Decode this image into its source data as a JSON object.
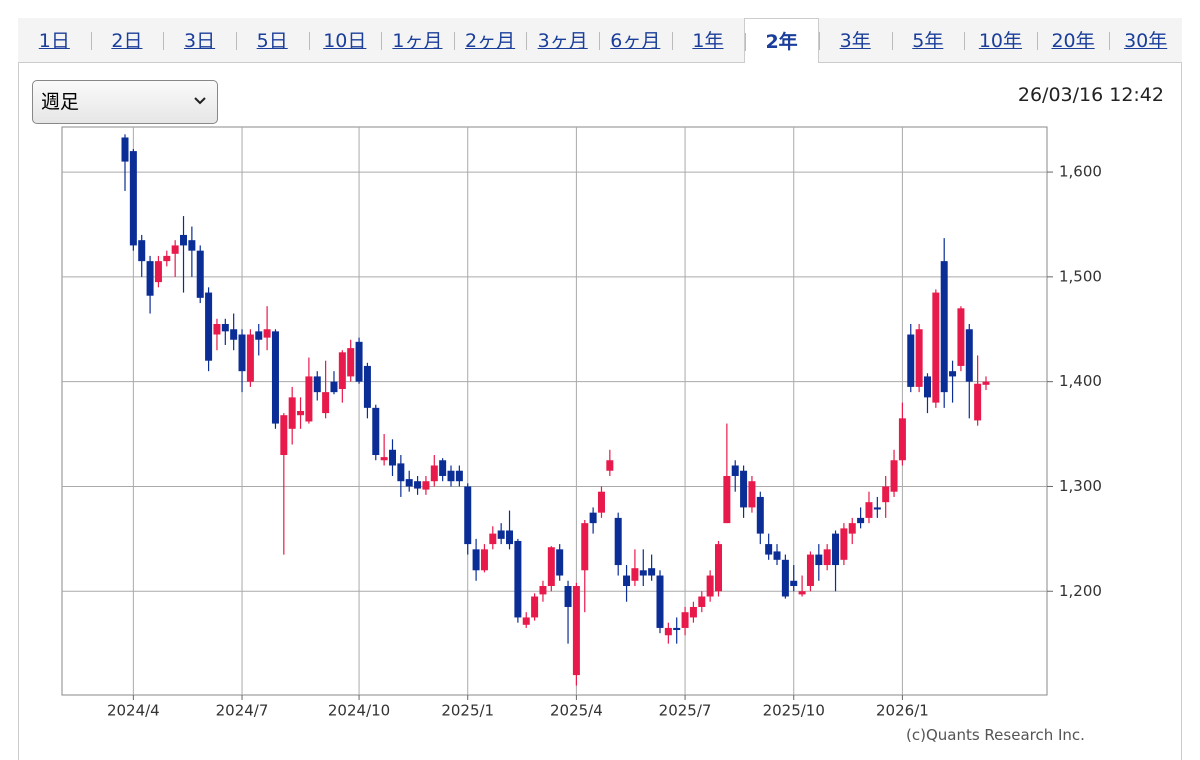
{
  "ui": {
    "tabs": [
      "1日",
      "2日",
      "3日",
      "5日",
      "10日",
      "1ヶ月",
      "2ヶ月",
      "3ヶ月",
      "6ヶ月",
      "1年",
      "2年",
      "3年",
      "5年",
      "10年",
      "20年",
      "30年"
    ],
    "active_tab": 10,
    "period_select": "週足",
    "timestamp": "26/03/16 12:42",
    "copyright": "(c)Quants Research Inc."
  },
  "chart_data": {
    "type": "candlestick",
    "up_color": "#e8194b",
    "down_color": "#0a2d96",
    "grid": true,
    "ylim": [
      1101,
      1643
    ],
    "yticks": [
      {
        "value": 1200,
        "label": "1,200"
      },
      {
        "value": 1300,
        "label": "1,300"
      },
      {
        "value": 1400,
        "label": "1,400"
      },
      {
        "value": 1500,
        "label": "1,500"
      },
      {
        "value": 1600,
        "label": "1,600"
      }
    ],
    "categories": [
      null,
      "2024/4",
      null,
      null,
      null,
      null,
      null,
      null,
      null,
      null,
      null,
      null,
      null,
      null,
      "2024/7",
      null,
      null,
      null,
      null,
      null,
      null,
      null,
      null,
      null,
      null,
      null,
      null,
      null,
      "2024/10",
      null,
      null,
      null,
      null,
      null,
      null,
      null,
      null,
      null,
      null,
      null,
      null,
      "2025/1",
      null,
      null,
      null,
      null,
      null,
      null,
      null,
      null,
      null,
      null,
      null,
      null,
      "2025/4",
      null,
      null,
      null,
      null,
      null,
      null,
      null,
      null,
      null,
      null,
      null,
      null,
      "2025/7",
      null,
      null,
      null,
      null,
      null,
      null,
      null,
      null,
      null,
      null,
      null,
      null,
      "2025/10",
      null,
      null,
      null,
      null,
      null,
      null,
      null,
      null,
      null,
      null,
      null,
      null,
      "2026/1",
      null,
      null,
      null,
      null,
      null,
      null,
      null,
      null,
      null,
      null
    ],
    "open": [
      1633,
      1620,
      1535,
      1515,
      1495,
      1515,
      1522,
      1540,
      1535,
      1525,
      1485,
      1445,
      1455,
      1450,
      1445,
      1400,
      1448,
      1442,
      1448,
      1330,
      1355,
      1368,
      1362,
      1405,
      1370,
      1400,
      1393,
      1405,
      1438,
      1415,
      1375,
      1325,
      1335,
      1322,
      1307,
      1305,
      1297,
      1305,
      1325,
      1315,
      1315,
      1300,
      1240,
      1220,
      1245,
      1258,
      1258,
      1248,
      1168,
      1175,
      1197,
      1205,
      1240,
      1205,
      1120,
      1220,
      1275,
      1275,
      1315,
      1270,
      1215,
      1210,
      1220,
      1222,
      1215,
      1158,
      1165,
      1165,
      1175,
      1185,
      1195,
      1200,
      1265,
      1320,
      1315,
      1280,
      1290,
      1245,
      1238,
      1230,
      1210,
      1197,
      1205,
      1235,
      1225,
      1255,
      1230,
      1255,
      1270,
      1270,
      1280,
      1285,
      1295,
      1325,
      1445,
      1395,
      1405,
      1380,
      1515,
      1410,
      1415,
      1450,
      1363,
      1397
    ],
    "high": [
      1636,
      1622,
      1540,
      1520,
      1520,
      1525,
      1535,
      1558,
      1548,
      1530,
      1490,
      1460,
      1460,
      1465,
      1450,
      1450,
      1455,
      1472,
      1450,
      1370,
      1395,
      1385,
      1423,
      1410,
      1420,
      1410,
      1430,
      1440,
      1442,
      1418,
      1378,
      1350,
      1345,
      1330,
      1315,
      1310,
      1310,
      1330,
      1327,
      1320,
      1320,
      1303,
      1250,
      1245,
      1262,
      1265,
      1277,
      1250,
      1180,
      1198,
      1210,
      1243,
      1245,
      1210,
      1208,
      1268,
      1280,
      1300,
      1335,
      1275,
      1225,
      1240,
      1240,
      1235,
      1220,
      1170,
      1175,
      1185,
      1190,
      1200,
      1220,
      1248,
      1360,
      1325,
      1320,
      1310,
      1295,
      1255,
      1245,
      1235,
      1225,
      1215,
      1238,
      1245,
      1245,
      1258,
      1265,
      1270,
      1280,
      1295,
      1290,
      1310,
      1335,
      1380,
      1455,
      1455,
      1408,
      1488,
      1537,
      1420,
      1472,
      1455,
      1425,
      1405
    ],
    "low": [
      1582,
      1525,
      1500,
      1465,
      1490,
      1510,
      1500,
      1485,
      1500,
      1475,
      1410,
      1430,
      1435,
      1430,
      1390,
      1395,
      1425,
      1430,
      1355,
      1235,
      1340,
      1355,
      1360,
      1382,
      1365,
      1388,
      1380,
      1400,
      1398,
      1365,
      1325,
      1320,
      1310,
      1290,
      1295,
      1292,
      1292,
      1300,
      1305,
      1300,
      1300,
      1235,
      1210,
      1218,
      1240,
      1245,
      1240,
      1170,
      1165,
      1172,
      1190,
      1200,
      1210,
      1150,
      1110,
      1180,
      1255,
      1270,
      1310,
      1215,
      1190,
      1205,
      1205,
      1210,
      1160,
      1150,
      1150,
      1158,
      1170,
      1180,
      1190,
      1195,
      1265,
      1295,
      1270,
      1275,
      1245,
      1230,
      1225,
      1193,
      1200,
      1195,
      1200,
      1210,
      1220,
      1200,
      1225,
      1245,
      1260,
      1265,
      1270,
      1270,
      1290,
      1320,
      1390,
      1390,
      1370,
      1375,
      1375,
      1380,
      1410,
      1365,
      1358,
      1392
    ],
    "close": [
      1610,
      1530,
      1515,
      1482,
      1515,
      1520,
      1530,
      1530,
      1525,
      1480,
      1420,
      1455,
      1448,
      1440,
      1410,
      1445,
      1440,
      1450,
      1360,
      1368,
      1385,
      1372,
      1405,
      1390,
      1390,
      1390,
      1428,
      1432,
      1400,
      1375,
      1330,
      1328,
      1320,
      1305,
      1300,
      1298,
      1305,
      1320,
      1310,
      1305,
      1305,
      1245,
      1220,
      1240,
      1255,
      1250,
      1245,
      1175,
      1175,
      1195,
      1205,
      1242,
      1215,
      1185,
      1205,
      1265,
      1265,
      1295,
      1325,
      1225,
      1205,
      1222,
      1215,
      1215,
      1165,
      1165,
      1163,
      1180,
      1185,
      1195,
      1215,
      1245,
      1310,
      1310,
      1280,
      1305,
      1255,
      1235,
      1230,
      1195,
      1205,
      1200,
      1235,
      1225,
      1240,
      1225,
      1260,
      1265,
      1265,
      1285,
      1278,
      1300,
      1325,
      1365,
      1395,
      1450,
      1385,
      1485,
      1390,
      1405,
      1470,
      1400,
      1398,
      1400
    ]
  }
}
